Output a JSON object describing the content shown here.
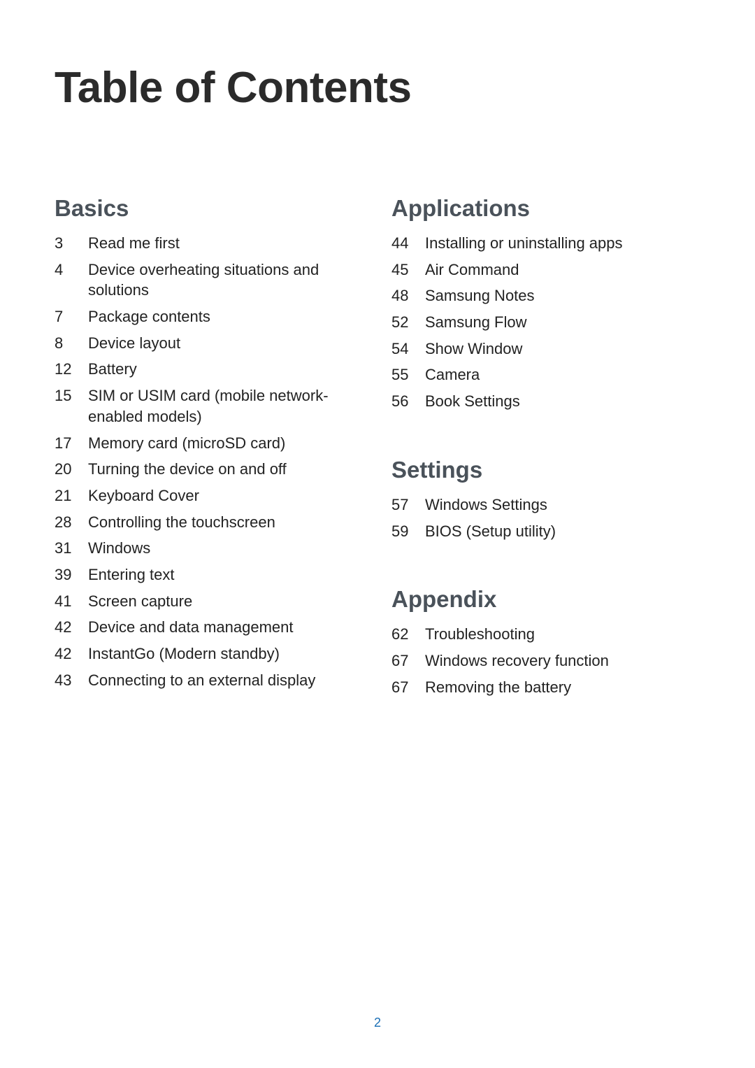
{
  "page": {
    "title": "Table of Contents",
    "page_number": "2",
    "title_color": "#2b2b2b",
    "heading_color": "#4a525a",
    "text_color": "#222222",
    "page_number_color": "#1a6fb5",
    "title_fontsize": 62,
    "heading_fontsize": 33,
    "entry_fontsize": 22,
    "page_number_fontsize": 18
  },
  "sections": {
    "basics": {
      "heading": "Basics",
      "entries": [
        {
          "page": "3",
          "title": "Read me first"
        },
        {
          "page": "4",
          "title": "Device overheating situations and solutions"
        },
        {
          "page": "7",
          "title": "Package contents"
        },
        {
          "page": "8",
          "title": "Device layout"
        },
        {
          "page": "12",
          "title": "Battery"
        },
        {
          "page": "15",
          "title": "SIM or USIM card (mobile network-enabled models)"
        },
        {
          "page": "17",
          "title": "Memory card (microSD card)"
        },
        {
          "page": "20",
          "title": "Turning the device on and off"
        },
        {
          "page": "21",
          "title": "Keyboard Cover"
        },
        {
          "page": "28",
          "title": "Controlling the touchscreen"
        },
        {
          "page": "31",
          "title": "Windows"
        },
        {
          "page": "39",
          "title": "Entering text"
        },
        {
          "page": "41",
          "title": "Screen capture"
        },
        {
          "page": "42",
          "title": "Device and data management"
        },
        {
          "page": "42",
          "title": "InstantGo (Modern standby)"
        },
        {
          "page": "43",
          "title": "Connecting to an external display"
        }
      ]
    },
    "applications": {
      "heading": "Applications",
      "entries": [
        {
          "page": "44",
          "title": "Installing or uninstalling apps"
        },
        {
          "page": "45",
          "title": "Air Command"
        },
        {
          "page": "48",
          "title": "Samsung Notes"
        },
        {
          "page": "52",
          "title": "Samsung Flow"
        },
        {
          "page": "54",
          "title": "Show Window"
        },
        {
          "page": "55",
          "title": "Camera"
        },
        {
          "page": "56",
          "title": "Book Settings"
        }
      ]
    },
    "settings": {
      "heading": "Settings",
      "entries": [
        {
          "page": "57",
          "title": "Windows Settings"
        },
        {
          "page": "59",
          "title": "BIOS (Setup utility)"
        }
      ]
    },
    "appendix": {
      "heading": "Appendix",
      "entries": [
        {
          "page": "62",
          "title": "Troubleshooting"
        },
        {
          "page": "67",
          "title": "Windows recovery function"
        },
        {
          "page": "67",
          "title": "Removing the battery"
        }
      ]
    }
  }
}
